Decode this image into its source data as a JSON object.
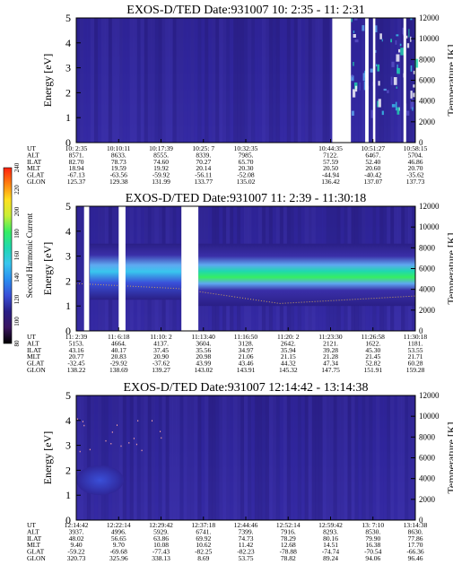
{
  "colors": {
    "bg_deep": "#2a1f86",
    "bg_mid": "#3a2fa8",
    "bg_light": "#5a50c8",
    "cyan": "#39c6ee",
    "teal": "#1fd8b0",
    "green": "#36ee62",
    "light_blue": "#5fa8f0",
    "gap": "#ffffff",
    "line": "#c8a060"
  },
  "colorbar": {
    "label": "Second Harmonic Current",
    "ticks": [
      "80",
      "100",
      "120",
      "140",
      "160",
      "180",
      "200",
      "220",
      "240"
    ],
    "gradient": [
      "#000000",
      "#3a1660",
      "#2a1f86",
      "#3a4fd8",
      "#2a8ef0",
      "#39c6ee",
      "#1fd8b0",
      "#36ee62",
      "#c8ee36",
      "#ffe020",
      "#ff8010",
      "#ff2010"
    ]
  },
  "chart_data": [
    {
      "type": "heatmap",
      "title": "EXOS-D/TED  Date:931007  10: 2:35 - 11: 2:31",
      "ylabel": "Energy [eV]",
      "y2label": "Temperature [K]",
      "ylim": [
        0,
        5
      ],
      "y2lim": [
        0,
        12000
      ],
      "y_ticks": [
        "0",
        "1",
        "2",
        "3",
        "4",
        "5"
      ],
      "y2_ticks": [
        "0",
        "2000",
        "4000",
        "6000",
        "8000",
        "10000",
        "12000"
      ],
      "data_gaps": [
        [
          0.755,
          0.81
        ],
        [
          0.852,
          0.862
        ],
        [
          0.875,
          0.882
        ],
        [
          0.965,
          0.973
        ]
      ],
      "intensity_note": "low counts throughout; scattered bright spots near 5-7 eV after 10:44",
      "axis_table": {
        "labels": [
          "UT",
          "ALT",
          "ILAT",
          "MLT",
          "GLAT",
          "GLON"
        ],
        "columns": [
          [
            "10: 2:35",
            "8571.",
            "82.70",
            "18.94",
            "-67.13",
            "125.37"
          ],
          [
            "10:10:11",
            "8633.",
            "78.73",
            "19.59",
            "-63.56",
            "129.38"
          ],
          [
            "10:17:39",
            "8555.",
            "74.60",
            "19.92",
            "-59.92",
            "131.99"
          ],
          [
            "10:25: 7",
            "8339.",
            "70.27",
            "20.14",
            "-56.11",
            "133.77"
          ],
          [
            "10:32:35",
            "7985.",
            "65.70",
            "20.30",
            "-52.08",
            "135.02"
          ],
          [
            "",
            "",
            "",
            "",
            "",
            ""
          ],
          [
            "10:44:35",
            "7122.",
            "57.59",
            "20.50",
            "-44.94",
            "136.42"
          ],
          [
            "10:51:27",
            "6467.",
            "52.40",
            "20.60",
            "-40.42",
            "137.07"
          ],
          [
            "10:58:15",
            "5704.",
            "46.86",
            "20.70",
            "-35.62",
            "137.73"
          ]
        ]
      }
    },
    {
      "type": "heatmap",
      "title": "EXOS-D/TED  Date:931007  11: 2:39 - 11:30:18",
      "ylabel": "Energy [eV]",
      "y2label": "Temperature [K]",
      "ylim": [
        0,
        5
      ],
      "y2lim": [
        0,
        12000
      ],
      "y_ticks": [
        "0",
        "1",
        "2",
        "3",
        "4",
        "5"
      ],
      "y2_ticks": [
        "0",
        "2000",
        "4000",
        "6000",
        "8000",
        "10000",
        "12000"
      ],
      "data_gaps": [
        [
          0.023,
          0.038
        ],
        [
          0.125,
          0.145
        ],
        [
          0.31,
          0.36
        ]
      ],
      "intensity_note": "strong band at ~2-3 eV peaking green after 11:13; cyan band before 11:10",
      "axis_table": {
        "labels": [
          "UT",
          "ALT",
          "ILAT",
          "MLT",
          "GLAT",
          "GLON"
        ],
        "columns": [
          [
            "11: 2:39",
            "5153.",
            "43.16",
            "20.77",
            "-32.45",
            "138.22"
          ],
          [
            "11: 6:18",
            "4664.",
            "40.17",
            "20.83",
            "-29.92",
            "138.69"
          ],
          [
            "11:10: 2",
            "4137.",
            "37.45",
            "20.90",
            "-37.62",
            "139.27"
          ],
          [
            "11:13:40",
            "3604.",
            "35.56",
            "20.98",
            "43.99",
            "143.02"
          ],
          [
            "11:16:50",
            "3128.",
            "34.97",
            "21.06",
            "43.46",
            "143.91"
          ],
          [
            "11:20: 2",
            "2642.",
            "35.94",
            "21.15",
            "44.32",
            "145.32"
          ],
          [
            "11:23:30",
            "2121.",
            "39.28",
            "21.28",
            "47.34",
            "147.75"
          ],
          [
            "11:26:58",
            "1622.",
            "45.30",
            "21.45",
            "52.82",
            "151.91"
          ],
          [
            "11:30:18",
            "1181.",
            "53.55",
            "21.71",
            "60.28",
            "159.28"
          ]
        ]
      }
    },
    {
      "type": "heatmap",
      "title": "EXOS-D/TED  Date:931007  12:14:42 - 13:14:38",
      "ylabel": "Energy [eV]",
      "y2label": "Temperature [K]",
      "ylim": [
        0,
        5
      ],
      "y2lim": [
        0,
        12000
      ],
      "y_ticks": [
        "0",
        "1",
        "2",
        "3",
        "4",
        "5"
      ],
      "y2_ticks": [
        "0",
        "2000",
        "4000",
        "6000",
        "8000",
        "10000",
        "12000"
      ],
      "data_gaps": [],
      "intensity_note": "weak lighter patch near 1-2 eV between 12:14 and 12:22, otherwise low counts",
      "axis_table": {
        "labels": [
          "UT",
          "ALT",
          "ILAT",
          "MLT",
          "GLAT",
          "GLON"
        ],
        "columns": [
          [
            "12:14:42",
            "3937.",
            "48.02",
            "9.40",
            "-59.22",
            "320.73"
          ],
          [
            "12:22:14",
            "4996.",
            "56.65",
            "9.70",
            "-69.68",
            "325.96"
          ],
          [
            "12:29:42",
            "5929.",
            "63.86",
            "10.08",
            "-77.43",
            "338.13"
          ],
          [
            "12:37:18",
            "6741.",
            "69.92",
            "10.62",
            "-82.25",
            "8.69"
          ],
          [
            "12:44:46",
            "7399.",
            "74.73",
            "11.42",
            "-82.23",
            "53.75"
          ],
          [
            "12:52:14",
            "7916.",
            "78.29",
            "12.68",
            "-78.88",
            "78.82"
          ],
          [
            "12:59:42",
            "8293.",
            "80.16",
            "14.51",
            "-74.74",
            "89.24"
          ],
          [
            "13: 7:10",
            "8530.",
            "79.90",
            "16.38",
            "-70.54",
            "94.06"
          ],
          [
            "13:14:38",
            "8630.",
            "77.86",
            "17.70",
            "-66.36",
            "96.46"
          ]
        ]
      }
    }
  ]
}
